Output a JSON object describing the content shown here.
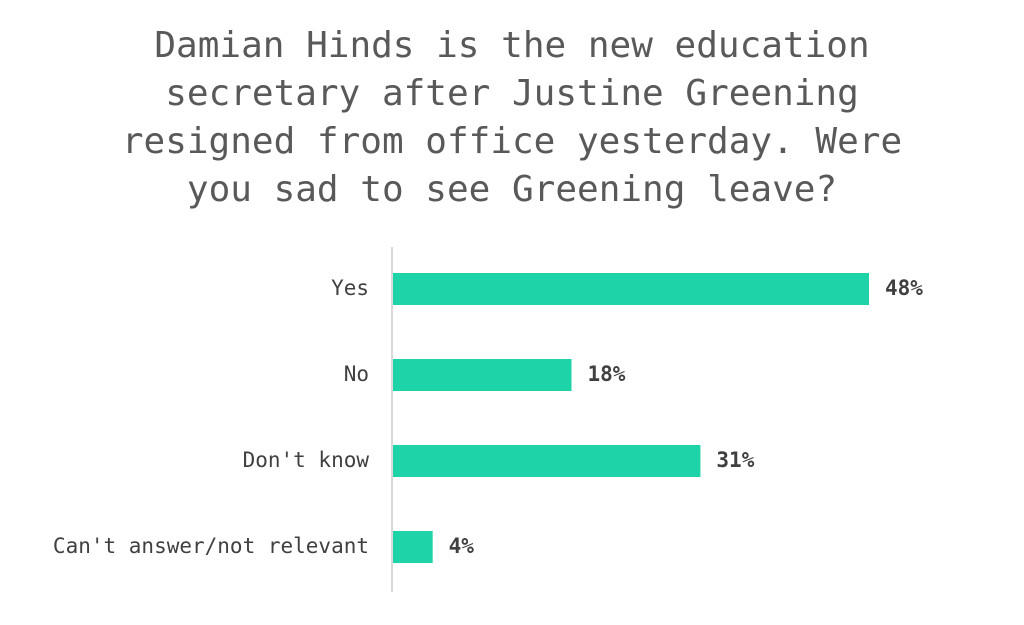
{
  "chart_data": {
    "type": "bar",
    "orientation": "horizontal",
    "title": "Damian Hinds is the new education secretary after Justine Greening resigned from office yesterday. Were you sad to see Greening leave?",
    "categories": [
      "Yes",
      "No",
      "Don't know",
      "Can't answer/not relevant"
    ],
    "values": [
      48,
      18,
      31,
      4
    ],
    "value_labels": [
      "48%",
      "18%",
      "31%",
      "4%"
    ],
    "unit": "%",
    "xlim": [
      0,
      48
    ],
    "grid": false,
    "legend": "none",
    "colors": {
      "bar": "#1ed3a7",
      "axis": "#d9d9d9",
      "text": "#404040",
      "title": "#595959"
    }
  }
}
